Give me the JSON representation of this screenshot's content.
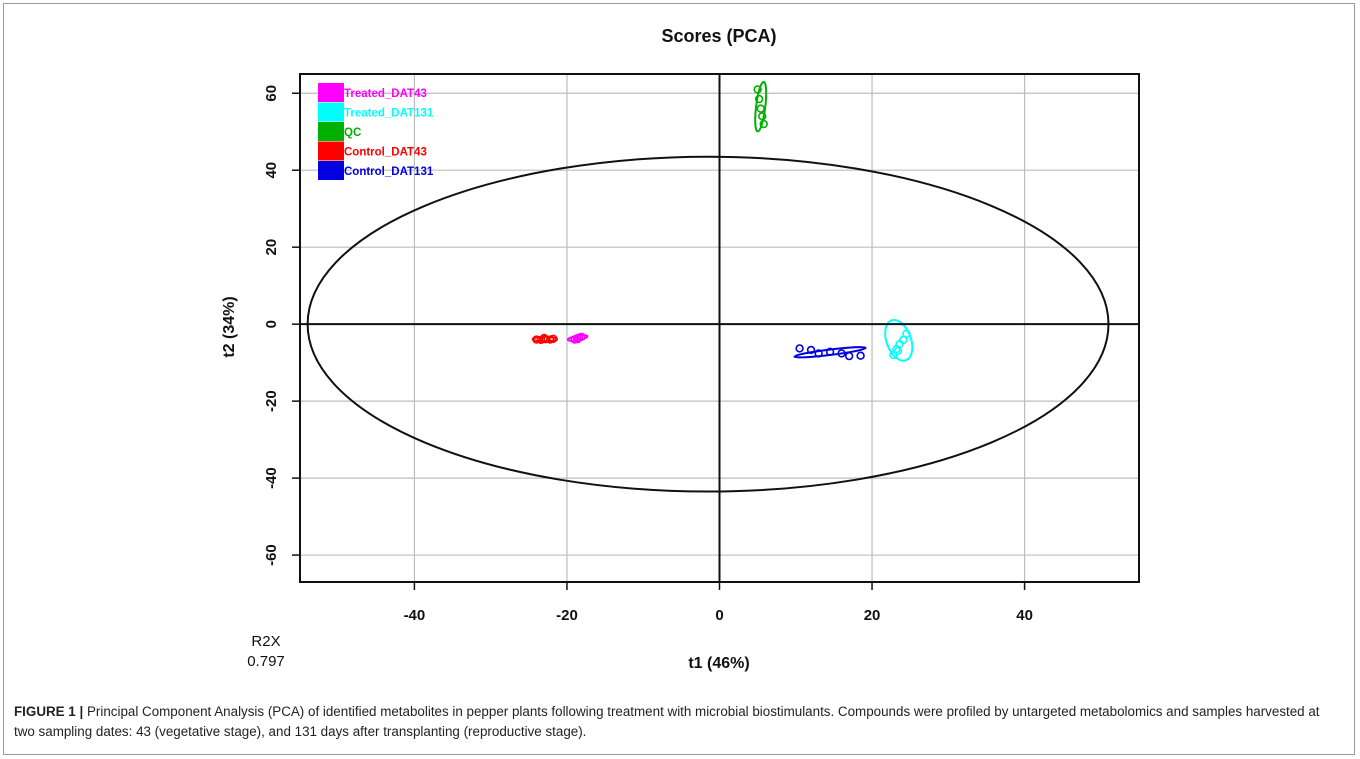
{
  "figure": {
    "caption_label": "FIGURE 1 |",
    "caption_text": " Principal Component Analysis (PCA) of identified metabolites in pepper plants following treatment with microbial biostimulants. Compounds were profiled by untargeted metabolomics and samples harvested at two sampling dates: 43 (vegetative stage), and 131 days after transplanting (reproductive stage)."
  },
  "chart_data": {
    "type": "scatter",
    "title": "Scores (PCA)",
    "xlabel": "t1 (46%)",
    "ylabel": "t2 (34%)",
    "xlim": [
      -55,
      55
    ],
    "ylim": [
      -67,
      65
    ],
    "xticks": [
      -40,
      -20,
      0,
      20,
      40
    ],
    "yticks": [
      60,
      40,
      20,
      0,
      -20,
      -40,
      -60
    ],
    "grid": true,
    "legend_position": "top-left",
    "r2x_label": "R2X",
    "r2x_value": "0.797",
    "hotelling_ellipse": {
      "cx": -1.5,
      "cy": 0,
      "rx": 52.5,
      "ry": 43.5
    },
    "series": [
      {
        "name": "Treated_DAT43",
        "color": "#ff00ff",
        "points": [
          [
            -19,
            -4
          ],
          [
            -18.7,
            -3.7
          ],
          [
            -18.4,
            -3.5
          ],
          [
            -18.1,
            -3.3
          ],
          [
            -18.6,
            -3.9
          ]
        ],
        "ellipse": {
          "cx": -18.6,
          "cy": -3.6,
          "rx": 1.3,
          "ry": 0.6,
          "angle": 10
        }
      },
      {
        "name": "Treated_DAT131",
        "color": "#00ffff",
        "points": [
          [
            22.8,
            -8
          ],
          [
            23.2,
            -6.5
          ],
          [
            23.6,
            -5.2
          ],
          [
            24.1,
            -4.1
          ],
          [
            24.5,
            -2.5
          ],
          [
            23.4,
            -7
          ]
        ],
        "ellipse": {
          "cx": 23.5,
          "cy": -4.2,
          "rx": 1.6,
          "ry": 5.5,
          "angle": 20
        }
      },
      {
        "name": "QC",
        "color": "#00b000",
        "points": [
          [
            5,
            61
          ],
          [
            5.2,
            58.5
          ],
          [
            5.4,
            56
          ],
          [
            5.6,
            54
          ],
          [
            5.8,
            52
          ]
        ],
        "ellipse": {
          "cx": 5.4,
          "cy": 56.5,
          "rx": 0.6,
          "ry": 6.5,
          "angle": -7
        }
      },
      {
        "name": "Control_DAT43",
        "color": "#ff0000",
        "points": [
          [
            -24,
            -4
          ],
          [
            -23.4,
            -4.1
          ],
          [
            -22.8,
            -3.9
          ],
          [
            -22.2,
            -4
          ],
          [
            -21.8,
            -3.8
          ],
          [
            -23,
            -3.6
          ]
        ],
        "ellipse": {
          "cx": -22.9,
          "cy": -3.9,
          "rx": 1.6,
          "ry": 0.6,
          "angle": 0
        }
      },
      {
        "name": "Control_DAT131",
        "color": "#0000e0",
        "points": [
          [
            10.5,
            -6.3
          ],
          [
            12,
            -6.7
          ],
          [
            13,
            -7.6
          ],
          [
            14.5,
            -7.2
          ],
          [
            16,
            -7.6
          ],
          [
            17,
            -8.3
          ],
          [
            18.5,
            -8.2
          ]
        ],
        "ellipse": {
          "cx": 14.5,
          "cy": -7.3,
          "rx": 4.7,
          "ry": 0.7,
          "angle": 7
        }
      }
    ]
  }
}
